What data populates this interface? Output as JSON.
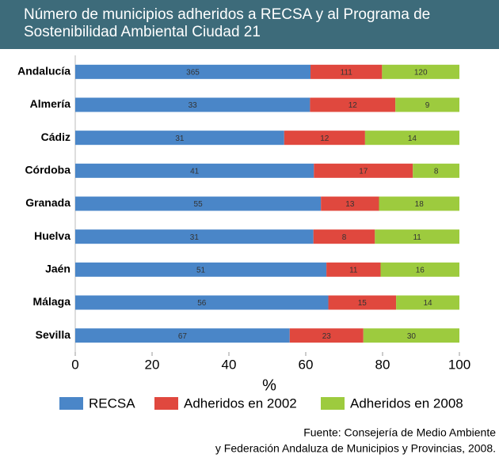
{
  "chart_data": {
    "type": "bar",
    "orientation": "horizontal",
    "stacking": "percent",
    "title": "Número de municipios adheridos a RECSA y al Programa de Sostenibilidad Ambiental Ciudad 21",
    "categories": [
      "Andalucía",
      "Almería",
      "Cádiz",
      "Córdoba",
      "Granada",
      "Huelva",
      "Jaén",
      "Málaga",
      "Sevilla"
    ],
    "series": [
      {
        "name": "RECSA",
        "color": "#4a86c8",
        "values": [
          365,
          33,
          31,
          41,
          55,
          31,
          51,
          56,
          67
        ]
      },
      {
        "name": "Adheridos en 2002",
        "color": "#e0483e",
        "values": [
          111,
          12,
          12,
          17,
          13,
          8,
          11,
          15,
          23
        ]
      },
      {
        "name": "Adheridos en 2008",
        "color": "#9dcb3e",
        "values": [
          120,
          9,
          14,
          8,
          18,
          11,
          16,
          14,
          30
        ]
      }
    ],
    "xlim": [
      0,
      100
    ],
    "xticks": [
      0,
      20,
      40,
      60,
      80,
      100
    ],
    "xlabel": "%",
    "legend": "bottom",
    "source": [
      "Fuente: Consejería de Medio Ambiente",
      "y Federación Andaluza de Municipios y Provincias, 2008."
    ]
  }
}
